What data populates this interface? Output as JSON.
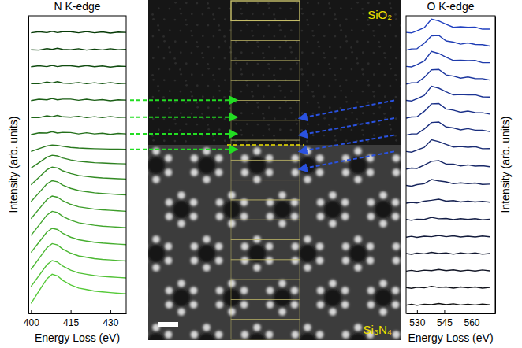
{
  "chart_data": [
    {
      "type": "line",
      "title": "N K-edge",
      "x_label": "Energy Loss (eV)",
      "y_label": "Intensity (arb. units)",
      "x": [
        400,
        403,
        406,
        408,
        410,
        412,
        415,
        418,
        421,
        424,
        427,
        430,
        433,
        436
      ],
      "xlim": [
        399,
        436
      ],
      "xticks": [
        400,
        415,
        430
      ],
      "ylim": [
        0,
        17.5
      ],
      "tick_labels": "x",
      "series": [
        {
          "color": "#063a06",
          "values": [
            16.5,
            16.56,
            16.51,
            16.58,
            16.51,
            16.56,
            16.56,
            16.5,
            16.57,
            16.5,
            16.55,
            16.48,
            16.54,
            16.52
          ]
        },
        {
          "color": "#0b430b",
          "values": [
            15.5,
            15.48,
            15.57,
            15.52,
            15.59,
            15.52,
            15.5,
            15.56,
            15.48,
            15.54,
            15.49,
            15.56,
            15.5,
            15.52
          ]
        },
        {
          "color": "#104c10",
          "values": [
            14.5,
            14.56,
            14.51,
            14.58,
            14.51,
            14.56,
            14.56,
            14.5,
            14.57,
            14.5,
            14.55,
            14.48,
            14.54,
            14.52
          ]
        },
        {
          "color": "#155512",
          "values": [
            13.5,
            13.5,
            13.6,
            13.55,
            13.62,
            13.54,
            13.52,
            13.57,
            13.5,
            13.56,
            13.5,
            13.57,
            13.51,
            13.53
          ]
        },
        {
          "color": "#1a5e15",
          "values": [
            12.51,
            12.59,
            12.56,
            12.63,
            12.56,
            12.6,
            12.6,
            12.53,
            12.59,
            12.53,
            12.57,
            12.5,
            12.56,
            12.54
          ]
        },
        {
          "color": "#1f6718",
          "values": [
            11.51,
            11.51,
            11.62,
            11.57,
            11.64,
            11.56,
            11.54,
            11.59,
            11.51,
            11.57,
            11.51,
            11.58,
            11.52,
            11.54
          ]
        },
        {
          "color": "#24701b",
          "values": [
            10.51,
            10.61,
            10.6,
            10.68,
            10.6,
            10.64,
            10.63,
            10.55,
            10.62,
            10.55,
            10.59,
            10.52,
            10.58,
            10.55
          ]
        },
        {
          "color": "#29791e",
          "values": [
            9.52,
            9.68,
            9.84,
            9.9,
            9.88,
            9.82,
            9.76,
            9.72,
            9.7,
            9.68,
            9.67,
            9.66,
            9.65,
            9.64
          ]
        },
        {
          "color": "#2e8221",
          "values": [
            8.54,
            8.86,
            9.18,
            9.3,
            9.26,
            9.14,
            9.02,
            8.94,
            8.9,
            8.86,
            8.84,
            8.82,
            8.8,
            8.79
          ]
        },
        {
          "color": "#338b24",
          "values": [
            7.56,
            8.0,
            8.44,
            8.6,
            8.55,
            8.38,
            8.22,
            8.11,
            8.05,
            8.0,
            7.96,
            7.94,
            7.92,
            7.9
          ]
        },
        {
          "color": "#389427",
          "values": [
            6.57,
            7.09,
            7.61,
            7.8,
            7.74,
            7.54,
            7.35,
            7.22,
            7.15,
            7.09,
            7.05,
            7.02,
            6.99,
            6.97
          ]
        },
        {
          "color": "#3d9d2a",
          "values": [
            5.57,
            6.13,
            6.69,
            6.9,
            6.83,
            6.62,
            6.41,
            6.27,
            6.2,
            6.13,
            6.09,
            6.06,
            6.03,
            6.0
          ]
        },
        {
          "color": "#42a62d",
          "values": [
            4.58,
            5.18,
            5.78,
            6.0,
            5.93,
            5.7,
            5.48,
            5.33,
            5.25,
            5.18,
            5.13,
            5.1,
            5.07,
            5.04
          ]
        },
        {
          "color": "#47af30",
          "values": [
            3.58,
            4.18,
            4.78,
            5.0,
            4.93,
            4.7,
            4.48,
            4.33,
            4.25,
            4.18,
            4.13,
            4.1,
            4.07,
            4.04
          ]
        },
        {
          "color": "#4cb833",
          "values": [
            2.58,
            3.22,
            3.86,
            4.1,
            4.02,
            3.78,
            3.54,
            3.38,
            3.3,
            3.22,
            3.17,
            3.14,
            3.11,
            3.08
          ]
        },
        {
          "color": "#51c136",
          "values": [
            1.58,
            2.22,
            2.86,
            3.1,
            3.02,
            2.78,
            2.54,
            2.38,
            2.3,
            2.22,
            2.17,
            2.14,
            2.11,
            2.08
          ]
        },
        {
          "color": "#56ca39",
          "values": [
            0.59,
            1.31,
            2.03,
            2.3,
            2.21,
            1.94,
            1.67,
            1.49,
            1.4,
            1.31,
            1.26,
            1.22,
            1.18,
            1.15
          ]
        }
      ]
    },
    {
      "type": "line",
      "title": "O K-edge",
      "x_label": "Energy Loss (eV)",
      "y_label": "Intensity (arb. units)",
      "x": [
        524,
        527,
        530,
        534,
        538,
        542,
        546,
        550,
        554,
        558,
        562,
        566,
        570
      ],
      "xlim": [
        524,
        573
      ],
      "xticks": [
        530,
        545,
        560
      ],
      "ylim": [
        0,
        17.5
      ],
      "tick_labels": "x",
      "series": [
        {
          "color": "#2040c0",
          "values": [
            16.52,
            16.49,
            16.61,
            16.8,
            17.3,
            17.19,
            17.0,
            16.82,
            16.85,
            16.82,
            16.83,
            16.71,
            16.71
          ]
        },
        {
          "color": "#1f3db5",
          "values": [
            15.48,
            15.55,
            15.56,
            15.88,
            16.32,
            16.34,
            16.02,
            15.95,
            15.83,
            15.9,
            15.81,
            15.8,
            15.72
          ]
        },
        {
          "color": "#1e3aaa",
          "values": [
            14.52,
            14.49,
            14.62,
            14.84,
            15.4,
            15.28,
            15.06,
            14.87,
            14.89,
            14.86,
            14.87,
            14.74,
            14.74
          ]
        },
        {
          "color": "#1d379f",
          "values": [
            13.48,
            13.55,
            13.56,
            13.88,
            14.32,
            14.34,
            14.02,
            13.95,
            13.83,
            13.9,
            13.81,
            13.8,
            13.72
          ]
        },
        {
          "color": "#1c3494",
          "values": [
            12.52,
            12.49,
            12.62,
            12.82,
            13.35,
            13.24,
            13.03,
            12.84,
            12.87,
            12.84,
            12.85,
            12.73,
            12.72
          ]
        },
        {
          "color": "#1b3189",
          "values": [
            11.48,
            11.55,
            11.56,
            11.88,
            12.32,
            12.34,
            12.02,
            11.95,
            11.83,
            11.9,
            11.81,
            11.8,
            11.72
          ]
        },
        {
          "color": "#1a2e7e",
          "values": [
            10.48,
            10.55,
            10.55,
            10.84,
            11.22,
            11.25,
            10.96,
            10.9,
            10.79,
            10.86,
            10.77,
            10.77,
            10.69
          ]
        },
        {
          "color": "#192b73",
          "values": [
            9.52,
            9.48,
            9.6,
            9.76,
            10.21,
            10.1,
            9.94,
            9.78,
            9.81,
            9.77,
            9.8,
            9.68,
            9.69
          ]
        },
        {
          "color": "#182868",
          "values": [
            8.48,
            8.54,
            8.52,
            8.72,
            8.94,
            8.98,
            8.78,
            8.77,
            8.67,
            8.73,
            8.66,
            8.68,
            8.62
          ]
        },
        {
          "color": "#17255d",
          "values": [
            7.52,
            7.48,
            7.57,
            7.62,
            7.87,
            7.79,
            7.73,
            7.62,
            7.67,
            7.63,
            7.66,
            7.58,
            7.6
          ]
        },
        {
          "color": "#162252",
          "values": [
            6.48,
            6.53,
            6.49,
            6.6,
            6.65,
            6.71,
            6.6,
            6.63,
            6.55,
            6.6,
            6.55,
            6.59,
            6.54
          ]
        },
        {
          "color": "#151f47",
          "values": [
            5.52,
            5.47,
            5.54,
            5.52,
            5.64,
            5.56,
            5.58,
            5.51,
            5.57,
            5.52,
            5.57,
            5.5,
            5.54
          ]
        },
        {
          "color": "#141c3c",
          "values": [
            4.48,
            4.53,
            4.47,
            4.54,
            4.51,
            4.58,
            4.51,
            4.56,
            4.49,
            4.54,
            4.49,
            4.55,
            4.5
          ]
        },
        {
          "color": "#131931",
          "values": [
            3.52,
            3.47,
            3.54,
            3.5,
            3.59,
            3.52,
            3.55,
            3.48,
            3.55,
            3.5,
            3.55,
            3.48,
            3.52
          ]
        },
        {
          "color": "#121626",
          "values": [
            2.48,
            2.53,
            2.47,
            2.54,
            2.51,
            2.58,
            2.51,
            2.56,
            2.49,
            2.54,
            2.49,
            2.55,
            2.5
          ]
        },
        {
          "color": "#11131b",
          "values": [
            1.52,
            1.47,
            1.54,
            1.5,
            1.59,
            1.52,
            1.55,
            1.48,
            1.55,
            1.5,
            1.55,
            1.48,
            1.52
          ]
        },
        {
          "color": "#101010",
          "values": [
            0.48,
            0.53,
            0.47,
            0.54,
            0.51,
            0.58,
            0.51,
            0.56,
            0.49,
            0.54,
            0.49,
            0.55,
            0.5
          ]
        }
      ]
    }
  ],
  "image": {
    "top_label": "SiO₂",
    "bottom_label": "Si₃N₄"
  }
}
